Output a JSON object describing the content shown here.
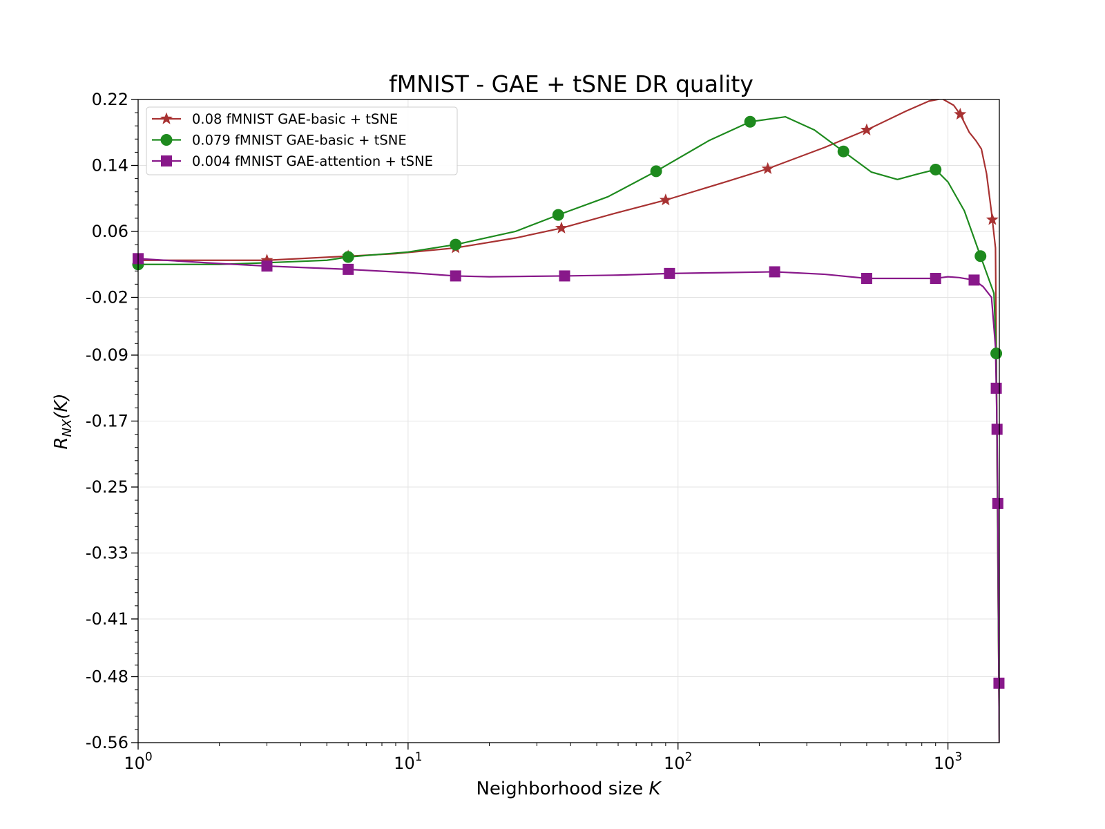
{
  "chart_data": {
    "type": "line",
    "title": "fMNIST - GAE + tSNE DR quality",
    "xlabel": "Neighborhood size K",
    "ylabel": "R_NX(K)",
    "x_scale": "log",
    "xlim": [
      1,
      1550
    ],
    "ylim": [
      -0.56,
      0.22
    ],
    "x_ticks": [
      {
        "value": 1,
        "base": "10",
        "exp": "0"
      },
      {
        "value": 10,
        "base": "10",
        "exp": "1"
      },
      {
        "value": 100,
        "base": "10",
        "exp": "2"
      },
      {
        "value": 1000,
        "base": "10",
        "exp": "3"
      }
    ],
    "y_ticks": [
      {
        "value": 0.22,
        "label": "0.22"
      },
      {
        "value": 0.14,
        "label": "0.14"
      },
      {
        "value": 0.06,
        "label": "0.06"
      },
      {
        "value": -0.02,
        "label": "-0.02"
      },
      {
        "value": -0.09,
        "label": "-0.09"
      },
      {
        "value": -0.17,
        "label": "-0.17"
      },
      {
        "value": -0.25,
        "label": "-0.25"
      },
      {
        "value": -0.33,
        "label": "-0.33"
      },
      {
        "value": -0.41,
        "label": "-0.41"
      },
      {
        "value": -0.48,
        "label": "-0.48"
      },
      {
        "value": -0.56,
        "label": "-0.56"
      }
    ],
    "grid": true,
    "legend_position": "top-left",
    "series": [
      {
        "name": "0.08 fMNIST GAE-basic + tSNE",
        "color": "#a83232",
        "marker": "star",
        "points": [
          [
            1,
            0.025
          ],
          [
            3,
            0.025
          ],
          [
            6,
            0.03
          ],
          [
            9,
            0.033
          ],
          [
            15,
            0.04
          ],
          [
            25,
            0.052
          ],
          [
            37,
            0.064
          ],
          [
            60,
            0.083
          ],
          [
            90,
            0.098
          ],
          [
            150,
            0.12
          ],
          [
            215,
            0.136
          ],
          [
            350,
            0.162
          ],
          [
            500,
            0.183
          ],
          [
            700,
            0.206
          ],
          [
            850,
            0.218
          ],
          [
            950,
            0.221
          ],
          [
            1050,
            0.213
          ],
          [
            1110,
            0.202
          ],
          [
            1200,
            0.18
          ],
          [
            1270,
            0.17
          ],
          [
            1330,
            0.16
          ],
          [
            1390,
            0.13
          ],
          [
            1450,
            0.083
          ],
          [
            1500,
            0.04
          ],
          [
            1550,
            -0.56
          ]
        ],
        "markers_at": [
          3,
          6,
          15,
          37,
          90,
          215,
          500,
          1110,
          1460
        ]
      },
      {
        "name": "0.079 fMNIST GAE-basic + tSNE",
        "color": "#1e8a1e",
        "marker": "circle",
        "points": [
          [
            1,
            0.02
          ],
          [
            2,
            0.02
          ],
          [
            3,
            0.022
          ],
          [
            5,
            0.025
          ],
          [
            6,
            0.029
          ],
          [
            10,
            0.035
          ],
          [
            15,
            0.044
          ],
          [
            25,
            0.06
          ],
          [
            36,
            0.08
          ],
          [
            55,
            0.102
          ],
          [
            83,
            0.133
          ],
          [
            130,
            0.17
          ],
          [
            185,
            0.193
          ],
          [
            250,
            0.199
          ],
          [
            320,
            0.183
          ],
          [
            410,
            0.157
          ],
          [
            520,
            0.132
          ],
          [
            650,
            0.123
          ],
          [
            780,
            0.13
          ],
          [
            900,
            0.135
          ],
          [
            1000,
            0.12
          ],
          [
            1150,
            0.085
          ],
          [
            1320,
            0.03
          ],
          [
            1480,
            -0.015
          ],
          [
            1510,
            -0.088
          ],
          [
            1550,
            -0.56
          ]
        ],
        "markers_at": [
          1,
          6,
          15,
          36,
          83,
          185,
          410,
          900,
          1320,
          1510
        ]
      },
      {
        "name": "0.004 fMNIST GAE-attention + tSNE",
        "color": "#88188a",
        "marker": "square",
        "points": [
          [
            1,
            0.027
          ],
          [
            2,
            0.021
          ],
          [
            3,
            0.018
          ],
          [
            6,
            0.014
          ],
          [
            10,
            0.01
          ],
          [
            15,
            0.006
          ],
          [
            20,
            0.005
          ],
          [
            38,
            0.006
          ],
          [
            60,
            0.007
          ],
          [
            93,
            0.009
          ],
          [
            150,
            0.01
          ],
          [
            228,
            0.011
          ],
          [
            350,
            0.008
          ],
          [
            500,
            0.003
          ],
          [
            700,
            0.003
          ],
          [
            900,
            0.003
          ],
          [
            1000,
            0.005
          ],
          [
            1100,
            0.004
          ],
          [
            1250,
            0.001
          ],
          [
            1350,
            -0.007
          ],
          [
            1450,
            -0.02
          ],
          [
            1500,
            -0.08
          ],
          [
            1520,
            -0.18
          ],
          [
            1530,
            -0.27
          ],
          [
            1550,
            -0.56
          ]
        ],
        "markers_at": [
          1,
          3,
          6,
          15,
          38,
          93,
          228,
          500,
          900,
          1250,
          1510,
          1520,
          1530,
          1545
        ]
      }
    ]
  }
}
